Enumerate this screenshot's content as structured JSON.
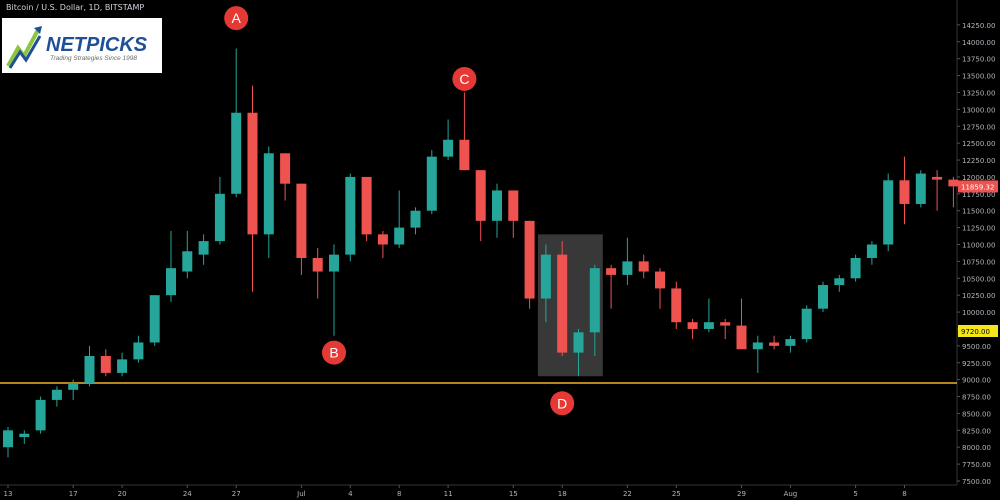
{
  "header": {
    "title": "Bitcoin / U.S. Dollar, 1D, BITSTAMP"
  },
  "logo": {
    "word": "NETPICKS",
    "tagline": "Trading Strategies Since 1998"
  },
  "colors": {
    "up": "#26a69a",
    "down": "#ef5350",
    "support": "#f0b429",
    "label_circle": "#e53935",
    "background": "#000000"
  },
  "chart_data": {
    "type": "candlestick",
    "title": "Bitcoin / U.S. Dollar, 1D, BITSTAMP",
    "ylim": [
      7500,
      14500
    ],
    "y_ticks": [
      7500,
      7750,
      8000,
      8250,
      8500,
      8750,
      9000,
      9250,
      9500,
      9750,
      10000,
      10250,
      10500,
      10750,
      11000,
      11250,
      11500,
      11750,
      12000,
      12250,
      12500,
      12750,
      13000,
      13250,
      13500,
      13750,
      14000,
      14250
    ],
    "x_ticks": [
      {
        "i": 0,
        "label": "13"
      },
      {
        "i": 4,
        "label": "17"
      },
      {
        "i": 7,
        "label": "20"
      },
      {
        "i": 11,
        "label": "24"
      },
      {
        "i": 14,
        "label": "27"
      },
      {
        "i": 18,
        "label": "Jul"
      },
      {
        "i": 21,
        "label": "4"
      },
      {
        "i": 24,
        "label": "8"
      },
      {
        "i": 27,
        "label": "11"
      },
      {
        "i": 31,
        "label": "15"
      },
      {
        "i": 34,
        "label": "18"
      },
      {
        "i": 38,
        "label": "22"
      },
      {
        "i": 41,
        "label": "25"
      },
      {
        "i": 45,
        "label": "29"
      },
      {
        "i": 48,
        "label": "Aug"
      },
      {
        "i": 52,
        "label": "5"
      },
      {
        "i": 55,
        "label": "8"
      }
    ],
    "candles": [
      {
        "o": 8000,
        "h": 8300,
        "l": 7850,
        "c": 8250
      },
      {
        "o": 8150,
        "h": 8250,
        "l": 8050,
        "c": 8200
      },
      {
        "o": 8250,
        "h": 8750,
        "l": 8200,
        "c": 8700
      },
      {
        "o": 8700,
        "h": 8900,
        "l": 8600,
        "c": 8850
      },
      {
        "o": 8850,
        "h": 9000,
        "l": 8700,
        "c": 8950
      },
      {
        "o": 8950,
        "h": 9500,
        "l": 8900,
        "c": 9350
      },
      {
        "o": 9350,
        "h": 9450,
        "l": 9050,
        "c": 9100
      },
      {
        "o": 9100,
        "h": 9400,
        "l": 9050,
        "c": 9300
      },
      {
        "o": 9300,
        "h": 9650,
        "l": 9250,
        "c": 9550
      },
      {
        "o": 9550,
        "h": 10250,
        "l": 9500,
        "c": 10250
      },
      {
        "o": 10250,
        "h": 11200,
        "l": 10150,
        "c": 10650
      },
      {
        "o": 10600,
        "h": 11200,
        "l": 10500,
        "c": 10900
      },
      {
        "o": 10850,
        "h": 11150,
        "l": 10700,
        "c": 11050
      },
      {
        "o": 11050,
        "h": 12000,
        "l": 11000,
        "c": 11750
      },
      {
        "o": 11750,
        "h": 13900,
        "l": 11700,
        "c": 12950
      },
      {
        "o": 12950,
        "h": 13350,
        "l": 10300,
        "c": 11150
      },
      {
        "o": 11150,
        "h": 12450,
        "l": 10800,
        "c": 12350
      },
      {
        "o": 12350,
        "h": 12350,
        "l": 11650,
        "c": 11900
      },
      {
        "o": 11900,
        "h": 11900,
        "l": 10550,
        "c": 10800
      },
      {
        "o": 10800,
        "h": 10950,
        "l": 10200,
        "c": 10600
      },
      {
        "o": 10600,
        "h": 11000,
        "l": 9650,
        "c": 10850
      },
      {
        "o": 10850,
        "h": 12050,
        "l": 10750,
        "c": 12000
      },
      {
        "o": 12000,
        "h": 12000,
        "l": 11050,
        "c": 11150
      },
      {
        "o": 11150,
        "h": 11200,
        "l": 10800,
        "c": 11000
      },
      {
        "o": 11000,
        "h": 11800,
        "l": 10950,
        "c": 11250
      },
      {
        "o": 11250,
        "h": 11550,
        "l": 11150,
        "c": 11500
      },
      {
        "o": 11500,
        "h": 12400,
        "l": 11450,
        "c": 12300
      },
      {
        "o": 12300,
        "h": 12850,
        "l": 12250,
        "c": 12550
      },
      {
        "o": 12550,
        "h": 13250,
        "l": 12100,
        "c": 12100
      },
      {
        "o": 12100,
        "h": 12100,
        "l": 11050,
        "c": 11350
      },
      {
        "o": 11350,
        "h": 11900,
        "l": 11100,
        "c": 11800
      },
      {
        "o": 11800,
        "h": 11800,
        "l": 11100,
        "c": 11350
      },
      {
        "o": 11350,
        "h": 11350,
        "l": 10050,
        "c": 10200
      },
      {
        "o": 10200,
        "h": 11000,
        "l": 9850,
        "c": 10850
      },
      {
        "o": 10850,
        "h": 11050,
        "l": 9350,
        "c": 9400
      },
      {
        "o": 9400,
        "h": 9750,
        "l": 9050,
        "c": 9700
      },
      {
        "o": 9700,
        "h": 10700,
        "l": 9350,
        "c": 10650
      },
      {
        "o": 10650,
        "h": 10700,
        "l": 10050,
        "c": 10550
      },
      {
        "o": 10550,
        "h": 11100,
        "l": 10400,
        "c": 10750
      },
      {
        "o": 10750,
        "h": 10850,
        "l": 10500,
        "c": 10600
      },
      {
        "o": 10600,
        "h": 10650,
        "l": 10050,
        "c": 10350
      },
      {
        "o": 10350,
        "h": 10450,
        "l": 9750,
        "c": 9850
      },
      {
        "o": 9850,
        "h": 9900,
        "l": 9600,
        "c": 9750
      },
      {
        "o": 9750,
        "h": 10200,
        "l": 9700,
        "c": 9850
      },
      {
        "o": 9850,
        "h": 9900,
        "l": 9600,
        "c": 9800
      },
      {
        "o": 9800,
        "h": 10200,
        "l": 9450,
        "c": 9450
      },
      {
        "o": 9450,
        "h": 9650,
        "l": 9100,
        "c": 9550
      },
      {
        "o": 9550,
        "h": 9650,
        "l": 9450,
        "c": 9500
      },
      {
        "o": 9500,
        "h": 9650,
        "l": 9400,
        "c": 9600
      },
      {
        "o": 9600,
        "h": 10100,
        "l": 9550,
        "c": 10050
      },
      {
        "o": 10050,
        "h": 10450,
        "l": 10000,
        "c": 10400
      },
      {
        "o": 10400,
        "h": 10550,
        "l": 10300,
        "c": 10500
      },
      {
        "o": 10500,
        "h": 10850,
        "l": 10450,
        "c": 10800
      },
      {
        "o": 10800,
        "h": 11050,
        "l": 10700,
        "c": 11000
      },
      {
        "o": 11000,
        "h": 12050,
        "l": 10900,
        "c": 11950
      },
      {
        "o": 11950,
        "h": 12300,
        "l": 11300,
        "c": 11600
      },
      {
        "o": 11600,
        "h": 12100,
        "l": 11550,
        "c": 12050
      },
      {
        "o": 12000,
        "h": 12100,
        "l": 11500,
        "c": 11960
      },
      {
        "o": 11960,
        "h": 12000,
        "l": 11550,
        "c": 11860
      }
    ],
    "support_level": 8950,
    "current_price": {
      "value": 11859.32,
      "label": "11859.32"
    },
    "marker_price": {
      "value": 9720.0,
      "label": "9720.00"
    },
    "annotations": [
      {
        "letter": "A",
        "i": 14,
        "y": 14350
      },
      {
        "letter": "B",
        "i": 20,
        "y": 9400
      },
      {
        "letter": "C",
        "i": 28,
        "y": 13450
      },
      {
        "letter": "D",
        "i": 34,
        "y": 8650
      }
    ],
    "highlight_range": {
      "from_i": 33,
      "to_i": 36,
      "y_from": 9050,
      "y_to": 11150
    }
  }
}
